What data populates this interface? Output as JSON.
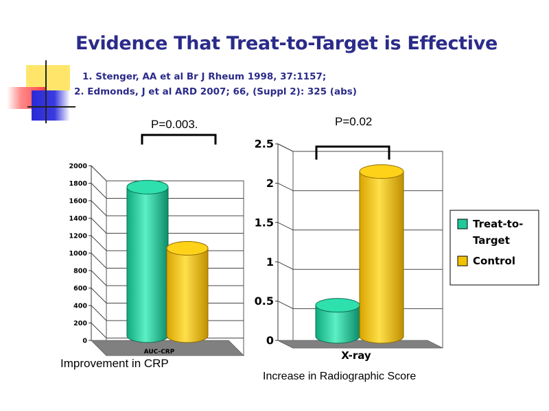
{
  "slide": {
    "title": "Evidence That Treat-to-Target is Effective",
    "ref1": "1. Stenger, AA et al Br J Rheum 1998, 37:1157;",
    "ref2": "2. Edmonds, J et al ARD 2007; 66, (Suppl 2): 325 (abs)",
    "left_caption": "Improvement in CRP",
    "right_caption": "Increase in Radiographic Score",
    "left_pvalue": "P=0.003.",
    "right_pvalue": "P=0.02"
  },
  "colors": {
    "title": "#2b2b8a",
    "treat": "#1fc99a",
    "control": "#f2c200",
    "deco_yellow": "#ffe66b",
    "deco_red": "#ff5050",
    "deco_blue": "#2b2bd6"
  },
  "chart_data": [
    {
      "type": "bar",
      "categories": [
        "AUC-CRP"
      ],
      "series": [
        {
          "name": "Treat-to-Target",
          "values": [
            1850
          ]
        },
        {
          "name": "Control",
          "values": [
            1150
          ]
        }
      ],
      "yticks": [
        "0",
        "200",
        "400",
        "600",
        "800",
        "1000",
        "1200",
        "1400",
        "1600",
        "1800",
        "2000"
      ],
      "ylim": [
        0,
        2000
      ],
      "grid": true
    },
    {
      "type": "bar",
      "categories": [
        "X-ray"
      ],
      "series": [
        {
          "name": "Treat-to-Target",
          "values": [
            0.5
          ]
        },
        {
          "name": "Control",
          "values": [
            2.2
          ]
        }
      ],
      "yticks": [
        "0",
        "0.5",
        "1",
        "1.5",
        "2",
        "2.5"
      ],
      "ylim": [
        0,
        2.5
      ],
      "grid": true,
      "legend": "right"
    }
  ]
}
